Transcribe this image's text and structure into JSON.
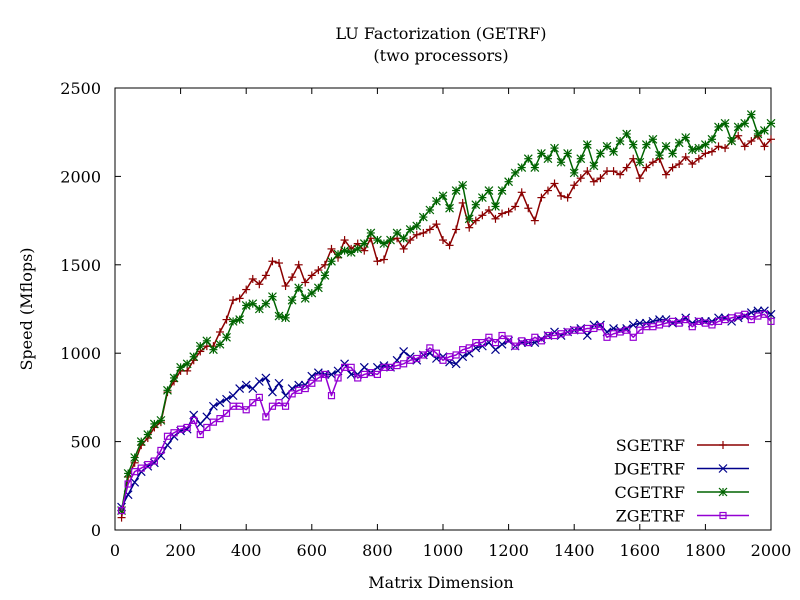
{
  "chart_data": {
    "type": "line",
    "title": "LU Factorization (GETRF)",
    "subtitle": "(two processors)",
    "xlabel": "Matrix Dimension",
    "ylabel": "Speed (Mflops)",
    "xlim": [
      0,
      2000
    ],
    "ylim": [
      0,
      2500
    ],
    "xticks": [
      "0",
      "200",
      "400",
      "600",
      "800",
      "1000",
      "1200",
      "1400",
      "1600",
      "1800",
      "2000"
    ],
    "yticks": [
      "0",
      "500",
      "1000",
      "1500",
      "2000",
      "2500"
    ],
    "grid": false,
    "legend_position": "bottom-right",
    "x": [
      20,
      40,
      60,
      80,
      100,
      120,
      140,
      160,
      180,
      200,
      220,
      240,
      260,
      280,
      300,
      320,
      340,
      360,
      380,
      400,
      420,
      440,
      460,
      480,
      500,
      520,
      540,
      560,
      580,
      600,
      620,
      640,
      660,
      680,
      700,
      720,
      740,
      760,
      780,
      800,
      820,
      840,
      860,
      880,
      900,
      920,
      940,
      960,
      980,
      1000,
      1020,
      1040,
      1060,
      1080,
      1100,
      1120,
      1140,
      1160,
      1180,
      1200,
      1220,
      1240,
      1260,
      1280,
      1300,
      1320,
      1340,
      1360,
      1380,
      1400,
      1420,
      1440,
      1460,
      1480,
      1500,
      1520,
      1540,
      1560,
      1580,
      1600,
      1620,
      1640,
      1660,
      1680,
      1700,
      1720,
      1740,
      1760,
      1780,
      1800,
      1820,
      1840,
      1860,
      1880,
      1900,
      1920,
      1940,
      1960,
      1980,
      2000
    ],
    "series": [
      {
        "name": "SGETRF",
        "color": "#8b0000",
        "marker": "plus",
        "values": [
          70,
          300,
          380,
          480,
          520,
          580,
          610,
          780,
          840,
          900,
          900,
          960,
          1010,
          1040,
          1040,
          1120,
          1190,
          1300,
          1310,
          1360,
          1420,
          1390,
          1440,
          1520,
          1510,
          1380,
          1430,
          1500,
          1400,
          1440,
          1470,
          1500,
          1590,
          1540,
          1640,
          1590,
          1620,
          1580,
          1650,
          1520,
          1530,
          1640,
          1650,
          1590,
          1640,
          1670,
          1680,
          1700,
          1730,
          1640,
          1610,
          1700,
          1850,
          1710,
          1750,
          1780,
          1810,
          1760,
          1790,
          1800,
          1830,
          1910,
          1820,
          1750,
          1880,
          1920,
          1960,
          1890,
          1880,
          1950,
          1990,
          2030,
          1970,
          1990,
          2030,
          2030,
          2010,
          2050,
          2100,
          1990,
          2050,
          2080,
          2100,
          2010,
          2050,
          2070,
          2110,
          2070,
          2100,
          2130,
          2140,
          2170,
          2160,
          2200,
          2230,
          2170,
          2200,
          2230,
          2170,
          2210
        ]
      },
      {
        "name": "DGETRF",
        "color": "#00008b",
        "marker": "cross",
        "values": [
          130,
          200,
          270,
          330,
          360,
          380,
          420,
          480,
          530,
          560,
          570,
          650,
          600,
          640,
          700,
          720,
          740,
          760,
          800,
          820,
          800,
          840,
          860,
          780,
          830,
          760,
          800,
          820,
          820,
          870,
          890,
          880,
          880,
          900,
          940,
          880,
          880,
          920,
          890,
          920,
          930,
          920,
          960,
          1010,
          980,
          960,
          990,
          1000,
          970,
          980,
          950,
          940,
          980,
          1000,
          1030,
          1040,
          1060,
          1020,
          1050,
          1070,
          1040,
          1060,
          1060,
          1060,
          1080,
          1100,
          1120,
          1100,
          1120,
          1130,
          1140,
          1100,
          1160,
          1160,
          1120,
          1140,
          1130,
          1140,
          1160,
          1170,
          1170,
          1180,
          1190,
          1190,
          1170,
          1180,
          1200,
          1170,
          1180,
          1180,
          1180,
          1200,
          1200,
          1180,
          1200,
          1210,
          1230,
          1240,
          1240,
          1220
        ]
      },
      {
        "name": "CGETRF",
        "color": "#006400",
        "marker": "star",
        "values": [
          110,
          320,
          410,
          500,
          540,
          600,
          620,
          790,
          860,
          920,
          940,
          980,
          1040,
          1070,
          1020,
          1050,
          1090,
          1180,
          1190,
          1270,
          1280,
          1250,
          1280,
          1320,
          1210,
          1200,
          1300,
          1370,
          1310,
          1340,
          1370,
          1440,
          1520,
          1560,
          1580,
          1570,
          1590,
          1620,
          1680,
          1640,
          1620,
          1640,
          1680,
          1650,
          1700,
          1720,
          1770,
          1810,
          1860,
          1890,
          1820,
          1920,
          1950,
          1760,
          1840,
          1880,
          1920,
          1830,
          1920,
          1970,
          2020,
          2050,
          2100,
          2050,
          2130,
          2100,
          2160,
          2080,
          2130,
          2020,
          2100,
          2180,
          2060,
          2130,
          2170,
          2140,
          2200,
          2240,
          2180,
          2080,
          2180,
          2210,
          2120,
          2170,
          2130,
          2190,
          2220,
          2150,
          2160,
          2180,
          2210,
          2280,
          2300,
          2200,
          2280,
          2300,
          2350,
          2240,
          2260,
          2300
        ]
      },
      {
        "name": "ZGETRF",
        "color": "#9400d3",
        "marker": "square",
        "values": [
          110,
          260,
          330,
          350,
          370,
          390,
          450,
          530,
          550,
          570,
          580,
          620,
          540,
          580,
          610,
          630,
          660,
          700,
          700,
          680,
          720,
          750,
          640,
          700,
          720,
          700,
          770,
          790,
          800,
          830,
          860,
          880,
          760,
          860,
          920,
          920,
          860,
          880,
          890,
          880,
          920,
          920,
          930,
          940,
          960,
          970,
          990,
          1030,
          1000,
          960,
          980,
          990,
          1020,
          1030,
          1060,
          1060,
          1090,
          1060,
          1100,
          1080,
          1040,
          1070,
          1060,
          1090,
          1070,
          1100,
          1100,
          1110,
          1120,
          1130,
          1130,
          1140,
          1140,
          1150,
          1090,
          1110,
          1120,
          1130,
          1090,
          1130,
          1150,
          1150,
          1160,
          1170,
          1180,
          1170,
          1190,
          1150,
          1180,
          1170,
          1160,
          1180,
          1190,
          1200,
          1210,
          1220,
          1190,
          1210,
          1220,
          1180
        ]
      }
    ]
  }
}
